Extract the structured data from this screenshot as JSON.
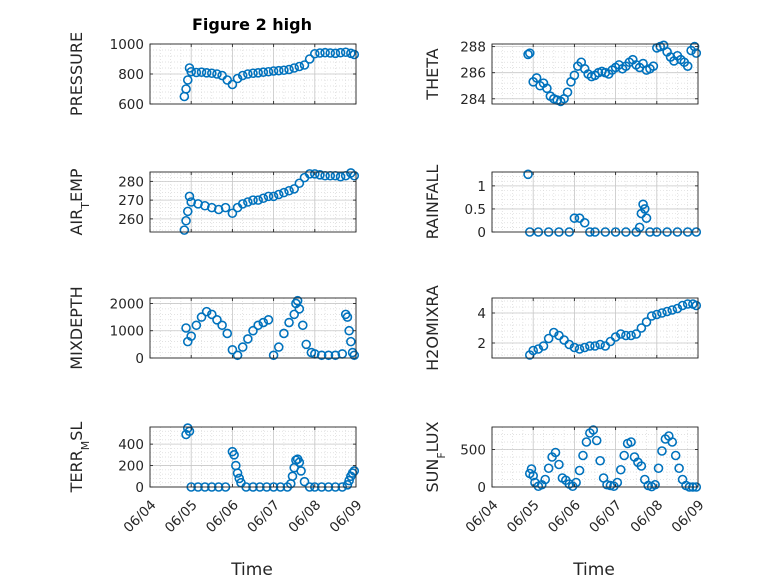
{
  "figure_title": "Figure 2 high",
  "x_axis": {
    "label": "Time",
    "ticks": [
      "06/04",
      "06/05",
      "06/06",
      "06/07",
      "06/08",
      "06/09"
    ]
  },
  "colors": {
    "marker": "#0072BD",
    "grid": "#d9d9d9",
    "axis": "#262626"
  },
  "chart_data": [
    {
      "type": "scatter",
      "ylabel": "PRESSURE",
      "ylim": [
        600,
        1000
      ],
      "yticks": [
        600,
        800,
        1000
      ],
      "ytick_labels": [
        "600",
        "800",
        "1000"
      ],
      "xlim": [
        "06/04 00:00",
        "06/09 00:00"
      ],
      "x": [
        "06/04 20:00",
        "06/04 21:00",
        "06/04 22:00",
        "06/04 23:00",
        "06/05 00:00",
        "06/05 03:00",
        "06/05 06:00",
        "06/05 09:00",
        "06/05 12:00",
        "06/05 15:00",
        "06/05 18:00",
        "06/05 21:00",
        "06/06 00:00",
        "06/06 03:00",
        "06/06 06:00",
        "06/06 09:00",
        "06/06 12:00",
        "06/06 15:00",
        "06/06 18:00",
        "06/06 21:00",
        "06/07 00:00",
        "06/07 03:00",
        "06/07 06:00",
        "06/07 09:00",
        "06/07 12:00",
        "06/07 15:00",
        "06/07 18:00",
        "06/07 21:00",
        "06/08 00:00",
        "06/08 03:00",
        "06/08 06:00",
        "06/08 09:00",
        "06/08 12:00",
        "06/08 15:00",
        "06/08 18:00",
        "06/08 21:00",
        "06/08 23:00"
      ],
      "y": [
        650,
        700,
        760,
        840,
        815,
        810,
        812,
        808,
        805,
        800,
        790,
        760,
        730,
        770,
        790,
        800,
        805,
        808,
        812,
        815,
        820,
        822,
        825,
        830,
        840,
        850,
        860,
        900,
        935,
        940,
        942,
        940,
        938,
        942,
        945,
        938,
        930
      ]
    },
    {
      "type": "scatter",
      "ylabel": "THETA",
      "ylim": [
        283.6,
        288.2
      ],
      "yticks": [
        284,
        286,
        288
      ],
      "ytick_labels": [
        "284",
        "286",
        "288"
      ],
      "xlim": [
        "06/04 00:00",
        "06/09 00:00"
      ],
      "x": [
        "06/04 21:00",
        "06/04 22:00",
        "06/05 00:00",
        "06/05 02:00",
        "06/05 04:00",
        "06/05 06:00",
        "06/05 08:00",
        "06/05 10:00",
        "06/05 12:00",
        "06/05 14:00",
        "06/05 16:00",
        "06/05 18:00",
        "06/05 20:00",
        "06/05 22:00",
        "06/06 00:00",
        "06/06 02:00",
        "06/06 04:00",
        "06/06 06:00",
        "06/06 08:00",
        "06/06 10:00",
        "06/06 12:00",
        "06/06 14:00",
        "06/06 16:00",
        "06/06 18:00",
        "06/06 20:00",
        "06/06 22:00",
        "06/07 00:00",
        "06/07 02:00",
        "06/07 04:00",
        "06/07 06:00",
        "06/07 08:00",
        "06/07 10:00",
        "06/07 12:00",
        "06/07 14:00",
        "06/07 16:00",
        "06/07 18:00",
        "06/07 20:00",
        "06/07 22:00",
        "06/08 00:00",
        "06/08 02:00",
        "06/08 04:00",
        "06/08 06:00",
        "06/08 08:00",
        "06/08 10:00",
        "06/08 12:00",
        "06/08 14:00",
        "06/08 16:00",
        "06/08 18:00",
        "06/08 20:00",
        "06/08 22:00",
        "06/08 23:00"
      ],
      "y": [
        287.4,
        287.5,
        285.3,
        285.6,
        285.0,
        285.2,
        284.8,
        284.2,
        284.0,
        283.9,
        283.8,
        284.0,
        284.5,
        285.3,
        285.8,
        286.5,
        286.8,
        286.3,
        285.9,
        285.7,
        285.8,
        286.0,
        286.1,
        286.0,
        285.9,
        286.2,
        286.4,
        286.6,
        286.3,
        286.5,
        286.8,
        287.0,
        286.6,
        286.4,
        286.7,
        286.2,
        286.3,
        286.5,
        287.9,
        288.0,
        288.1,
        287.6,
        287.2,
        286.9,
        287.3,
        287.0,
        286.8,
        286.5,
        287.7,
        288.0,
        287.5
      ]
    },
    {
      "type": "scatter",
      "ylabel": "AIR_TEMP",
      "ylim": [
        253,
        285
      ],
      "yticks": [
        260,
        270,
        280
      ],
      "ytick_labels": [
        "260",
        "270",
        "280"
      ],
      "xlim": [
        "06/04 00:00",
        "06/09 00:00"
      ],
      "x": [
        "06/04 20:00",
        "06/04 21:00",
        "06/04 22:00",
        "06/04 23:00",
        "06/05 00:00",
        "06/05 04:00",
        "06/05 08:00",
        "06/05 12:00",
        "06/05 16:00",
        "06/05 20:00",
        "06/06 00:00",
        "06/06 03:00",
        "06/06 06:00",
        "06/06 09:00",
        "06/06 12:00",
        "06/06 15:00",
        "06/06 18:00",
        "06/06 21:00",
        "06/07 00:00",
        "06/07 03:00",
        "06/07 06:00",
        "06/07 09:00",
        "06/07 12:00",
        "06/07 15:00",
        "06/07 18:00",
        "06/07 21:00",
        "06/08 00:00",
        "06/08 03:00",
        "06/08 06:00",
        "06/08 09:00",
        "06/08 12:00",
        "06/08 15:00",
        "06/08 18:00",
        "06/08 21:00",
        "06/08 23:00"
      ],
      "y": [
        254,
        259,
        264,
        272,
        269,
        268,
        267,
        266,
        265,
        266,
        263,
        266,
        268,
        269,
        270,
        270,
        271,
        272,
        272,
        273,
        274,
        275,
        276,
        279,
        282,
        284,
        284,
        283.5,
        283,
        283,
        283,
        282.5,
        283,
        284.5,
        283
      ]
    },
    {
      "type": "scatter",
      "ylabel": "RAINFALL",
      "ylim": [
        0,
        1.3
      ],
      "yticks": [
        0,
        0.5,
        1
      ],
      "ytick_labels": [
        "0",
        "0.5",
        "1"
      ],
      "xlim": [
        "06/04 00:00",
        "06/09 00:00"
      ],
      "x": [
        "06/04 21:00",
        "06/04 22:00",
        "06/05 03:00",
        "06/05 09:00",
        "06/05 15:00",
        "06/05 21:00",
        "06/06 00:00",
        "06/06 03:00",
        "06/06 06:00",
        "06/06 09:00",
        "06/06 12:00",
        "06/06 18:00",
        "06/07 00:00",
        "06/07 06:00",
        "06/07 12:00",
        "06/07 14:00",
        "06/07 15:00",
        "06/07 16:00",
        "06/07 17:00",
        "06/07 18:00",
        "06/07 20:00",
        "06/08 00:00",
        "06/08 06:00",
        "06/08 12:00",
        "06/08 18:00",
        "06/08 23:00"
      ],
      "y": [
        1.25,
        0,
        0,
        0,
        0,
        0,
        0.3,
        0.3,
        0.2,
        0,
        0,
        0,
        0,
        0,
        0,
        0.1,
        0.4,
        0.6,
        0.5,
        0.3,
        0,
        0,
        0,
        0,
        0,
        0
      ]
    },
    {
      "type": "scatter",
      "ylabel": "MIXDEPTH",
      "ylim": [
        0,
        2200
      ],
      "yticks": [
        0,
        1000,
        2000
      ],
      "ytick_labels": [
        "0",
        "1000",
        "2000"
      ],
      "xlim": [
        "06/04 00:00",
        "06/09 00:00"
      ],
      "x": [
        "06/04 21:00",
        "06/04 22:00",
        "06/05 00:00",
        "06/05 03:00",
        "06/05 06:00",
        "06/05 09:00",
        "06/05 12:00",
        "06/05 15:00",
        "06/05 18:00",
        "06/05 21:00",
        "06/06 00:00",
        "06/06 03:00",
        "06/06 06:00",
        "06/06 09:00",
        "06/06 12:00",
        "06/06 15:00",
        "06/06 18:00",
        "06/06 21:00",
        "06/07 00:00",
        "06/07 03:00",
        "06/07 06:00",
        "06/07 09:00",
        "06/07 12:00",
        "06/07 13:00",
        "06/07 14:00",
        "06/07 15:00",
        "06/07 17:00",
        "06/07 19:00",
        "06/07 22:00",
        "06/08 00:00",
        "06/08 04:00",
        "06/08 08:00",
        "06/08 12:00",
        "06/08 16:00",
        "06/08 18:00",
        "06/08 19:00",
        "06/08 20:00",
        "06/08 21:00",
        "06/08 22:00",
        "06/08 23:00"
      ],
      "y": [
        1100,
        600,
        800,
        1200,
        1500,
        1700,
        1600,
        1400,
        1200,
        900,
        300,
        100,
        400,
        700,
        1000,
        1200,
        1300,
        1400,
        100,
        400,
        900,
        1300,
        1600,
        2000,
        2100,
        1800,
        1200,
        500,
        200,
        150,
        100,
        100,
        100,
        150,
        1600,
        1500,
        1000,
        600,
        200,
        100
      ]
    },
    {
      "type": "scatter",
      "ylabel": "H2OMIXRA",
      "ylim": [
        1,
        5
      ],
      "yticks": [
        2,
        4
      ],
      "ytick_labels": [
        "2",
        "4"
      ],
      "xlim": [
        "06/04 00:00",
        "06/09 00:00"
      ],
      "x": [
        "06/04 22:00",
        "06/05 00:00",
        "06/05 03:00",
        "06/05 06:00",
        "06/05 09:00",
        "06/05 12:00",
        "06/05 15:00",
        "06/05 18:00",
        "06/05 21:00",
        "06/06 00:00",
        "06/06 03:00",
        "06/06 06:00",
        "06/06 09:00",
        "06/06 12:00",
        "06/06 15:00",
        "06/06 18:00",
        "06/06 21:00",
        "06/07 00:00",
        "06/07 03:00",
        "06/07 06:00",
        "06/07 09:00",
        "06/07 12:00",
        "06/07 15:00",
        "06/07 18:00",
        "06/07 21:00",
        "06/08 00:00",
        "06/08 03:00",
        "06/08 06:00",
        "06/08 09:00",
        "06/08 12:00",
        "06/08 15:00",
        "06/08 18:00",
        "06/08 21:00",
        "06/08 23:00"
      ],
      "y": [
        1.2,
        1.5,
        1.6,
        1.8,
        2.3,
        2.7,
        2.5,
        2.2,
        1.9,
        1.7,
        1.6,
        1.7,
        1.8,
        1.8,
        1.9,
        1.8,
        2.1,
        2.4,
        2.6,
        2.5,
        2.5,
        2.6,
        3.0,
        3.4,
        3.8,
        3.9,
        4.0,
        4.1,
        4.2,
        4.3,
        4.5,
        4.6,
        4.6,
        4.5
      ]
    },
    {
      "type": "scatter",
      "ylabel": "TERR_MSL",
      "ylim": [
        0,
        560
      ],
      "yticks": [
        0,
        200,
        400
      ],
      "ytick_labels": [
        "0",
        "200",
        "400"
      ],
      "xlim": [
        "06/04 00:00",
        "06/09 00:00"
      ],
      "x": [
        "06/04 21:00",
        "06/04 22:00",
        "06/04 23:00",
        "06/05 00:00",
        "06/05 04:00",
        "06/05 08:00",
        "06/05 12:00",
        "06/05 16:00",
        "06/05 20:00",
        "06/06 00:00",
        "06/06 01:00",
        "06/06 02:00",
        "06/06 03:00",
        "06/06 04:00",
        "06/06 05:00",
        "06/06 08:00",
        "06/06 12:00",
        "06/06 16:00",
        "06/06 20:00",
        "06/07 00:00",
        "06/07 04:00",
        "06/07 08:00",
        "06/07 10:00",
        "06/07 11:00",
        "06/07 12:00",
        "06/07 13:00",
        "06/07 14:00",
        "06/07 15:00",
        "06/07 16:00",
        "06/07 18:00",
        "06/07 21:00",
        "06/08 00:00",
        "06/08 04:00",
        "06/08 08:00",
        "06/08 12:00",
        "06/08 16:00",
        "06/08 19:00",
        "06/08 20:00",
        "06/08 21:00",
        "06/08 22:00",
        "06/08 23:00"
      ],
      "y": [
        490,
        550,
        520,
        0,
        0,
        0,
        0,
        0,
        0,
        330,
        300,
        200,
        130,
        80,
        40,
        0,
        0,
        0,
        0,
        0,
        0,
        0,
        30,
        100,
        180,
        250,
        260,
        230,
        150,
        50,
        0,
        0,
        0,
        0,
        0,
        0,
        20,
        60,
        100,
        130,
        150
      ]
    },
    {
      "type": "scatter",
      "ylabel": "SUN_FLUX",
      "ylim": [
        0,
        800
      ],
      "yticks": [
        0,
        500
      ],
      "ytick_labels": [
        "0",
        "500"
      ],
      "xlim": [
        "06/04 00:00",
        "06/09 00:00"
      ],
      "x": [
        "06/04 22:00",
        "06/04 23:00",
        "06/05 00:00",
        "06/05 01:00",
        "06/05 03:00",
        "06/05 05:00",
        "06/05 07:00",
        "06/05 09:00",
        "06/05 11:00",
        "06/05 13:00",
        "06/05 15:00",
        "06/05 17:00",
        "06/05 19:00",
        "06/05 21:00",
        "06/05 23:00",
        "06/06 01:00",
        "06/06 03:00",
        "06/06 05:00",
        "06/06 07:00",
        "06/06 09:00",
        "06/06 11:00",
        "06/06 13:00",
        "06/06 15:00",
        "06/06 17:00",
        "06/06 19:00",
        "06/06 21:00",
        "06/06 23:00",
        "06/07 01:00",
        "06/07 03:00",
        "06/07 05:00",
        "06/07 07:00",
        "06/07 09:00",
        "06/07 11:00",
        "06/07 13:00",
        "06/07 15:00",
        "06/07 17:00",
        "06/07 19:00",
        "06/07 21:00",
        "06/07 23:00",
        "06/08 01:00",
        "06/08 03:00",
        "06/08 05:00",
        "06/08 07:00",
        "06/08 09:00",
        "06/08 11:00",
        "06/08 13:00",
        "06/08 15:00",
        "06/08 17:00",
        "06/08 19:00",
        "06/08 21:00",
        "06/08 23:00"
      ],
      "y": [
        180,
        240,
        150,
        60,
        10,
        30,
        100,
        250,
        400,
        460,
        300,
        120,
        90,
        40,
        10,
        60,
        220,
        420,
        600,
        720,
        760,
        620,
        350,
        120,
        30,
        20,
        10,
        60,
        230,
        420,
        580,
        600,
        400,
        330,
        280,
        100,
        20,
        5,
        30,
        250,
        480,
        640,
        680,
        600,
        420,
        250,
        100,
        20,
        0,
        0,
        0
      ]
    }
  ]
}
